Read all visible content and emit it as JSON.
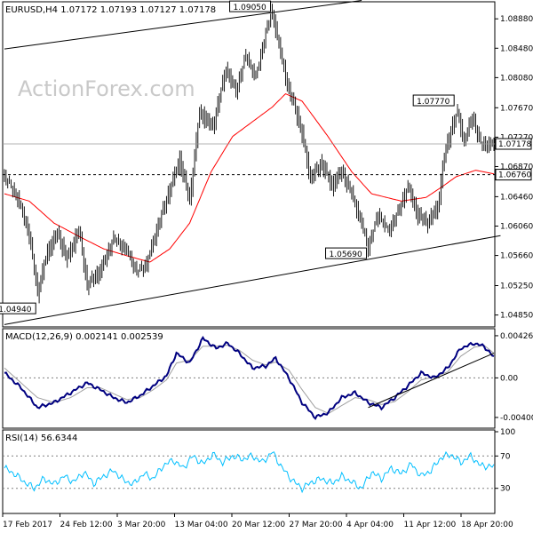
{
  "chart_data": [
    {
      "type": "candlestick",
      "panel": "price",
      "header": "EURUSD,H4  1.07172 1.07193 1.07127 1.07178",
      "watermark": "ActionForex.com",
      "ylim": [
        1.047,
        1.091
      ],
      "y_ticks": [
        "1.08880",
        "1.08480",
        "1.08080",
        "1.07670",
        "1.07270",
        "1.06870",
        "1.06460",
        "1.06060",
        "1.05660",
        "1.05250",
        "1.04850"
      ],
      "current_price": "1.07178",
      "horizontal_line": "1.06760",
      "callouts": [
        {
          "label": "1.09050",
          "bar": 162,
          "value": 1.0905
        },
        {
          "label": "1.07770",
          "bar": 273,
          "value": 1.0777
        },
        {
          "label": "1.05690",
          "bar": 220,
          "value": 1.0569
        },
        {
          "label": "1.04940",
          "bar": 20,
          "value": 1.0494
        }
      ],
      "trendlines": [
        {
          "from": [
            0,
            1.0847
          ],
          "to": [
            216,
            1.0913
          ]
        },
        {
          "from": [
            0,
            1.0472
          ],
          "to": [
            300,
            1.0593
          ]
        }
      ],
      "moving_average": [
        [
          0,
          1.065
        ],
        [
          15,
          1.064
        ],
        [
          30,
          1.061
        ],
        [
          45,
          1.0592
        ],
        [
          60,
          1.0575
        ],
        [
          75,
          1.0565
        ],
        [
          88,
          1.0557
        ],
        [
          100,
          1.0575
        ],
        [
          112,
          1.061
        ],
        [
          125,
          1.068
        ],
        [
          138,
          1.0728
        ],
        [
          150,
          1.0748
        ],
        [
          162,
          1.0768
        ],
        [
          170,
          1.0786
        ],
        [
          180,
          1.0776
        ],
        [
          195,
          1.073
        ],
        [
          210,
          1.068
        ],
        [
          222,
          1.065
        ],
        [
          240,
          1.064
        ],
        [
          255,
          1.0645
        ],
        [
          265,
          1.066
        ],
        [
          273,
          1.0673
        ],
        [
          285,
          1.0682
        ],
        [
          296,
          1.0677
        ]
      ],
      "close_path": [
        [
          0,
          1.0676
        ],
        [
          8,
          1.0645
        ],
        [
          15,
          1.0595
        ],
        [
          20,
          1.0515
        ],
        [
          26,
          1.057
        ],
        [
          32,
          1.0595
        ],
        [
          38,
          1.056
        ],
        [
          45,
          1.06
        ],
        [
          50,
          1.0525
        ],
        [
          58,
          1.0545
        ],
        [
          66,
          1.059
        ],
        [
          74,
          1.0575
        ],
        [
          80,
          1.0545
        ],
        [
          86,
          1.0555
        ],
        [
          92,
          1.06
        ],
        [
          100,
          1.0655
        ],
        [
          106,
          1.0695
        ],
        [
          112,
          1.064
        ],
        [
          118,
          1.076
        ],
        [
          126,
          1.074
        ],
        [
          134,
          1.082
        ],
        [
          140,
          1.079
        ],
        [
          146,
          1.084
        ],
        [
          152,
          1.081
        ],
        [
          158,
          1.087
        ],
        [
          162,
          1.0898
        ],
        [
          168,
          1.083
        ],
        [
          172,
          1.079
        ],
        [
          176,
          1.0765
        ],
        [
          180,
          1.073
        ],
        [
          185,
          1.067
        ],
        [
          192,
          1.069
        ],
        [
          198,
          1.066
        ],
        [
          204,
          1.068
        ],
        [
          210,
          1.065
        ],
        [
          216,
          1.061
        ],
        [
          220,
          1.0578
        ],
        [
          226,
          1.0625
        ],
        [
          232,
          1.06
        ],
        [
          238,
          1.0625
        ],
        [
          244,
          1.066
        ],
        [
          250,
          1.062
        ],
        [
          256,
          1.061
        ],
        [
          262,
          1.063
        ],
        [
          266,
          1.07
        ],
        [
          270,
          1.0735
        ],
        [
          274,
          1.076
        ],
        [
          278,
          1.072
        ],
        [
          283,
          1.0755
        ],
        [
          288,
          1.0718
        ],
        [
          296,
          1.0718
        ]
      ]
    },
    {
      "type": "line",
      "panel": "macd",
      "header": "MACD(12,26,9) 0.002141 0.002539",
      "y_ticks": [
        "0.004266",
        "0.00",
        "-0.004004"
      ],
      "ylim": [
        -0.005,
        0.0048
      ],
      "series": [
        {
          "values": [
            [
              0,
              0.0005
            ],
            [
              10,
              -0.001
            ],
            [
              20,
              -0.003
            ],
            [
              30,
              -0.0025
            ],
            [
              40,
              -0.0015
            ],
            [
              50,
              -0.0005
            ],
            [
              58,
              -0.0012
            ],
            [
              66,
              -0.002
            ],
            [
              74,
              -0.0025
            ],
            [
              82,
              -0.0018
            ],
            [
              90,
              -0.0008
            ],
            [
              98,
              0.0002
            ],
            [
              104,
              0.0025
            ],
            [
              112,
              0.0015
            ],
            [
              120,
              0.004
            ],
            [
              128,
              0.003
            ],
            [
              135,
              0.0035
            ],
            [
              142,
              0.0025
            ],
            [
              150,
              0.001
            ],
            [
              158,
              0.0012
            ],
            [
              164,
              0.002
            ],
            [
              172,
              0.0
            ],
            [
              180,
              -0.0025
            ],
            [
              188,
              -0.004
            ],
            [
              196,
              -0.0035
            ],
            [
              204,
              -0.002
            ],
            [
              212,
              -0.0015
            ],
            [
              220,
              -0.0025
            ],
            [
              228,
              -0.003
            ],
            [
              236,
              -0.002
            ],
            [
              244,
              -0.0008
            ],
            [
              252,
              0.0005
            ],
            [
              260,
              0.0
            ],
            [
              268,
              0.001
            ],
            [
              276,
              0.003
            ],
            [
              284,
              0.0035
            ],
            [
              290,
              0.0032
            ],
            [
              296,
              0.0021
            ]
          ]
        },
        {
          "values": [
            [
              0,
              0.001
            ],
            [
              10,
              -0.0005
            ],
            [
              20,
              -0.002
            ],
            [
              30,
              -0.0025
            ],
            [
              40,
              -0.002
            ],
            [
              50,
              -0.001
            ],
            [
              58,
              -0.001
            ],
            [
              66,
              -0.0016
            ],
            [
              74,
              -0.0022
            ],
            [
              82,
              -0.002
            ],
            [
              90,
              -0.0012
            ],
            [
              98,
              -0.0002
            ],
            [
              104,
              0.0015
            ],
            [
              112,
              0.0018
            ],
            [
              120,
              0.0032
            ],
            [
              128,
              0.0032
            ],
            [
              135,
              0.0033
            ],
            [
              142,
              0.0028
            ],
            [
              150,
              0.0018
            ],
            [
              158,
              0.0013
            ],
            [
              164,
              0.0016
            ],
            [
              172,
              0.0008
            ],
            [
              180,
              -0.0012
            ],
            [
              188,
              -0.003
            ],
            [
              196,
              -0.0036
            ],
            [
              204,
              -0.0028
            ],
            [
              212,
              -0.002
            ],
            [
              220,
              -0.0022
            ],
            [
              228,
              -0.0027
            ],
            [
              236,
              -0.0024
            ],
            [
              244,
              -0.0014
            ],
            [
              252,
              -0.0002
            ],
            [
              260,
              0.0001
            ],
            [
              268,
              0.0006
            ],
            [
              276,
              0.0022
            ],
            [
              284,
              0.0031
            ],
            [
              290,
              0.0033
            ],
            [
              296,
              0.0025
            ]
          ]
        }
      ],
      "trendline": {
        "from": [
          220,
          -0.003
        ],
        "to": [
          296,
          0.0025
        ]
      }
    },
    {
      "type": "line",
      "panel": "rsi",
      "header": "RSI(14) 56.6344",
      "y_ticks": [
        "100",
        "70",
        "30",
        "0"
      ],
      "ylim": [
        0,
        100
      ],
      "levels": [
        70,
        30
      ],
      "series": [
        {
          "values": [
            [
              0,
              55
            ],
            [
              6,
              48
            ],
            [
              12,
              38
            ],
            [
              18,
              30
            ],
            [
              24,
              42
            ],
            [
              30,
              35
            ],
            [
              36,
              45
            ],
            [
              42,
              38
            ],
            [
              48,
              50
            ],
            [
              54,
              36
            ],
            [
              60,
              45
            ],
            [
              66,
              52
            ],
            [
              72,
              40
            ],
            [
              78,
              35
            ],
            [
              84,
              48
            ],
            [
              90,
              42
            ],
            [
              96,
              58
            ],
            [
              102,
              65
            ],
            [
              108,
              55
            ],
            [
              114,
              70
            ],
            [
              120,
              60
            ],
            [
              126,
              72
            ],
            [
              132,
              62
            ],
            [
              138,
              70
            ],
            [
              144,
              66
            ],
            [
              150,
              70
            ],
            [
              156,
              62
            ],
            [
              162,
              75
            ],
            [
              168,
              55
            ],
            [
              174,
              40
            ],
            [
              180,
              30
            ],
            [
              186,
              38
            ],
            [
              192,
              42
            ],
            [
              198,
              36
            ],
            [
              204,
              45
            ],
            [
              210,
              38
            ],
            [
              216,
              30
            ],
            [
              222,
              50
            ],
            [
              228,
              42
            ],
            [
              234,
              55
            ],
            [
              240,
              48
            ],
            [
              246,
              60
            ],
            [
              252,
              45
            ],
            [
              258,
              52
            ],
            [
              264,
              68
            ],
            [
              270,
              72
            ],
            [
              276,
              62
            ],
            [
              282,
              70
            ],
            [
              288,
              58
            ],
            [
              296,
              57
            ]
          ]
        }
      ]
    }
  ],
  "x_axis": {
    "bar_count": 297,
    "labels": [
      {
        "text": "17 Feb 2017",
        "bar": 0
      },
      {
        "text": "24 Feb 12:00",
        "bar": 42
      },
      {
        "text": "3 Mar 20:00",
        "bar": 84
      },
      {
        "text": "13 Mar 04:00",
        "bar": 126
      },
      {
        "text": "20 Mar 12:00",
        "bar": 168
      },
      {
        "text": "27 Mar 20:00",
        "bar": 210
      },
      {
        "text": "4 Apr 04:00",
        "bar": 252
      },
      {
        "text": "11 Apr 12:00",
        "bar": 294
      },
      {
        "text": "18 Apr 20:00",
        "bar": 336
      }
    ]
  },
  "colors": {
    "candle": "#000000",
    "moving_average": "#ff0000",
    "macd": "#000080",
    "signal": "#a0a0a0",
    "rsi": "#00bfff",
    "frame": "#000000",
    "watermark": "#c9c9c9"
  }
}
